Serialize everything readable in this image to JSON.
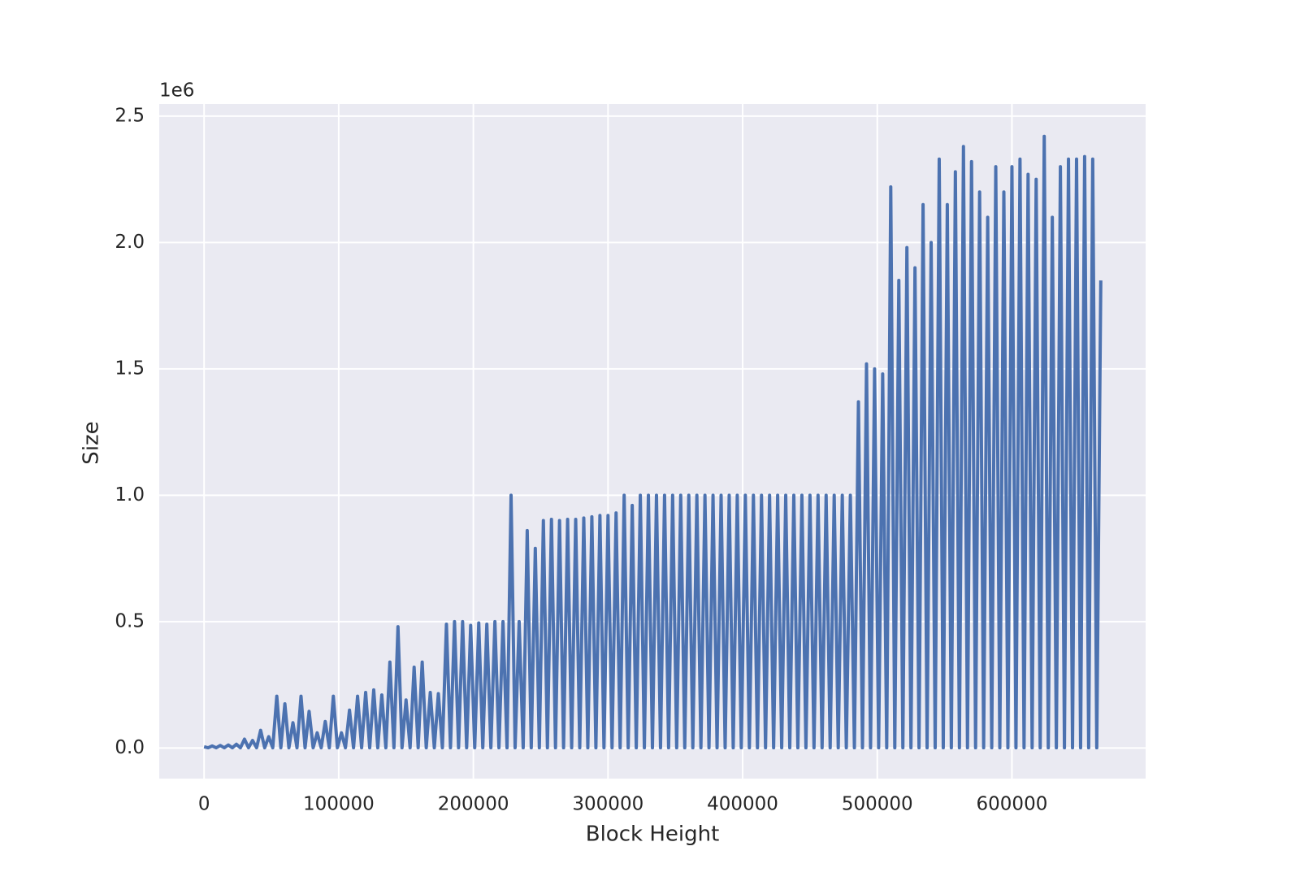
{
  "chart_data": {
    "type": "line",
    "xlabel": "Block Height",
    "ylabel": "Size",
    "y_offset_label": "1e6",
    "xlim": [
      -33300,
      699300
    ],
    "ylim": [
      -121000,
      2548000
    ],
    "xticks": [
      0,
      100000,
      200000,
      300000,
      400000,
      500000,
      600000
    ],
    "yticks": [
      {
        "value": 0,
        "label": "0.0"
      },
      {
        "value": 500000,
        "label": "0.5"
      },
      {
        "value": 1000000,
        "label": "1.0"
      },
      {
        "value": 1500000,
        "label": "1.5"
      },
      {
        "value": 2000000,
        "label": "2.0"
      },
      {
        "value": 2500000,
        "label": "2.5"
      }
    ],
    "grid": true,
    "x": [
      0,
      3000,
      6000,
      9000,
      12000,
      15000,
      18000,
      21000,
      24000,
      27000,
      30000,
      33000,
      36000,
      39000,
      42000,
      45000,
      48000,
      51000,
      54000,
      57000,
      60000,
      63000,
      66000,
      69000,
      72000,
      75000,
      78000,
      81000,
      84000,
      87000,
      90000,
      93000,
      96000,
      99000,
      102000,
      105000,
      108000,
      111000,
      114000,
      117000,
      120000,
      123000,
      126000,
      129000,
      132000,
      135000,
      138000,
      141000,
      144000,
      147000,
      150000,
      153000,
      156000,
      159000,
      162000,
      165000,
      168000,
      171000,
      174000,
      177000,
      180000,
      183000,
      186000,
      189000,
      192000,
      195000,
      198000,
      201000,
      204000,
      207000,
      210000,
      213000,
      216000,
      219000,
      222000,
      225000,
      228000,
      231000,
      234000,
      237000,
      240000,
      243000,
      246000,
      249000,
      252000,
      255000,
      258000,
      261000,
      264000,
      267000,
      270000,
      273000,
      276000,
      279000,
      282000,
      285000,
      288000,
      291000,
      294000,
      297000,
      300000,
      303000,
      306000,
      309000,
      312000,
      315000,
      318000,
      321000,
      324000,
      327000,
      330000,
      333000,
      336000,
      339000,
      342000,
      345000,
      348000,
      351000,
      354000,
      357000,
      360000,
      363000,
      366000,
      369000,
      372000,
      375000,
      378000,
      381000,
      384000,
      387000,
      390000,
      393000,
      396000,
      399000,
      402000,
      405000,
      408000,
      411000,
      414000,
      417000,
      420000,
      423000,
      426000,
      429000,
      432000,
      435000,
      438000,
      441000,
      444000,
      447000,
      450000,
      453000,
      456000,
      459000,
      462000,
      465000,
      468000,
      471000,
      474000,
      477000,
      480000,
      483000,
      486000,
      489000,
      492000,
      495000,
      498000,
      501000,
      504000,
      507000,
      510000,
      513000,
      516000,
      519000,
      522000,
      525000,
      528000,
      531000,
      534000,
      537000,
      540000,
      543000,
      546000,
      549000,
      552000,
      555000,
      558000,
      561000,
      564000,
      567000,
      570000,
      573000,
      576000,
      579000,
      582000,
      585000,
      588000,
      591000,
      594000,
      597000,
      600000,
      603000,
      606000,
      609000,
      612000,
      615000,
      618000,
      621000,
      624000,
      627000,
      630000,
      633000,
      636000,
      639000,
      642000,
      645000,
      648000,
      651000,
      654000,
      657000,
      660000,
      663000,
      666000
    ],
    "series": [
      {
        "name": "Size",
        "color": "#4c72b0",
        "values": [
          5000,
          1000,
          8000,
          1000,
          10000,
          1000,
          12000,
          1000,
          15000,
          1000,
          35000,
          1000,
          30000,
          1000,
          70000,
          1000,
          45000,
          1000,
          205000,
          1000,
          175000,
          1000,
          100000,
          1000,
          205000,
          1000,
          145000,
          1000,
          60000,
          1000,
          105000,
          1000,
          205000,
          1000,
          60000,
          1000,
          150000,
          1000,
          205000,
          1000,
          220000,
          1000,
          230000,
          1000,
          210000,
          1000,
          340000,
          1000,
          480000,
          1000,
          190000,
          1000,
          320000,
          1000,
          340000,
          1000,
          220000,
          1000,
          215000,
          1000,
          490000,
          1000,
          500000,
          1000,
          500000,
          1000,
          485000,
          1000,
          495000,
          1000,
          490000,
          1000,
          500000,
          1000,
          500000,
          1000,
          1000000,
          1000,
          500000,
          1000,
          860000,
          1000,
          790000,
          1000,
          900000,
          1000,
          905000,
          1000,
          900000,
          1000,
          905000,
          1000,
          905000,
          1000,
          910000,
          1000,
          915000,
          1000,
          920000,
          1000,
          920000,
          1000,
          930000,
          1000,
          1000000,
          1000,
          960000,
          1000,
          1000000,
          1000,
          1000000,
          1000,
          1000000,
          1000,
          1000000,
          1000,
          1000000,
          1000,
          1000000,
          1000,
          1000000,
          1000,
          1000000,
          1000,
          1000000,
          1000,
          1000000,
          1000,
          1000000,
          1000,
          1000000,
          1000,
          1000000,
          1000,
          1000000,
          1000,
          1000000,
          1000,
          1000000,
          1000,
          1000000,
          1000,
          1000000,
          1000,
          1000000,
          1000,
          1000000,
          1000,
          1000000,
          1000,
          1000000,
          1000,
          1000000,
          1000,
          1000000,
          1000,
          1000000,
          1000,
          1000000,
          1000,
          1000000,
          1000,
          1370000,
          1000,
          1520000,
          1000,
          1500000,
          1000,
          1480000,
          1000,
          2220000,
          1000,
          1850000,
          1000,
          1980000,
          1000,
          1900000,
          1000,
          2150000,
          1000,
          2000000,
          1000,
          2330000,
          1000,
          2150000,
          1000,
          2280000,
          1000,
          2380000,
          1000,
          2320000,
          1000,
          2200000,
          1000,
          2100000,
          1000,
          2300000,
          1000,
          2200000,
          1000,
          2300000,
          1000,
          2330000,
          1000,
          2270000,
          1000,
          2250000,
          1000,
          2420000,
          1000,
          2100000,
          1000,
          2300000,
          1000,
          2330000,
          1000,
          2330000,
          1000,
          2340000,
          1000,
          2330000,
          1000,
          1850000
        ]
      }
    ]
  }
}
